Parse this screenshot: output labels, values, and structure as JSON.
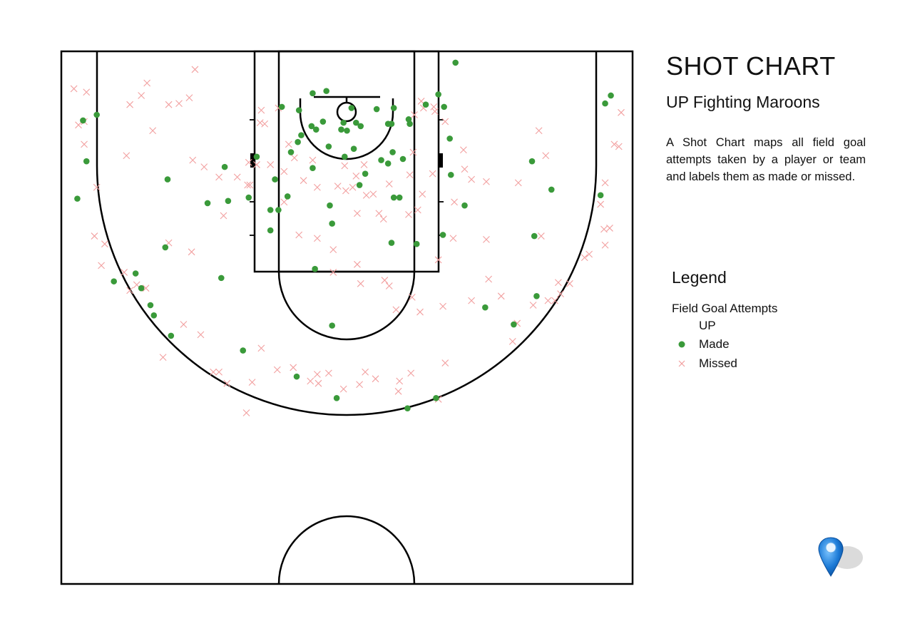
{
  "header": {
    "title": "SHOT CHART",
    "team": "UP Fighting Maroons",
    "description": "A Shot Chart maps all field goal attempts taken by a player or team and labels them as made or missed."
  },
  "legend": {
    "title": "Legend",
    "group_label": "Field Goal Attempts",
    "team_label": "UP",
    "made_label": "Made",
    "missed_label": "Missed",
    "made_color": "#3a9a3a",
    "missed_color": "#f2a0a0"
  },
  "icons": {
    "pin": "map-pin-icon"
  },
  "chart_data": {
    "type": "scatter",
    "title": "SHOT CHART",
    "subtitle": "UP Fighting Maroons",
    "xlim": [
      0,
      50
    ],
    "ylim": [
      0,
      47
    ],
    "series": [
      {
        "name": "Made",
        "color": "#3a9a3a",
        "marker": "circle",
        "points": [
          [
            34.5,
            1.0
          ],
          [
            33.0,
            3.8
          ],
          [
            22.0,
            3.7
          ],
          [
            23.2,
            3.5
          ],
          [
            19.3,
            4.9
          ],
          [
            25.4,
            5.0
          ],
          [
            20.8,
            5.2
          ],
          [
            27.6,
            5.1
          ],
          [
            29.1,
            5.0
          ],
          [
            33.5,
            4.9
          ],
          [
            31.9,
            4.7
          ],
          [
            30.4,
            6.0
          ],
          [
            30.5,
            6.4
          ],
          [
            22.9,
            6.2
          ],
          [
            24.7,
            6.3
          ],
          [
            25.8,
            6.3
          ],
          [
            26.2,
            6.6
          ],
          [
            21.9,
            6.6
          ],
          [
            22.3,
            6.9
          ],
          [
            24.5,
            6.9
          ],
          [
            21.0,
            7.4
          ],
          [
            20.7,
            8.0
          ],
          [
            28.6,
            6.4
          ],
          [
            28.9,
            6.4
          ],
          [
            25.0,
            7.0
          ],
          [
            34.0,
            7.7
          ],
          [
            23.4,
            8.4
          ],
          [
            25.6,
            8.6
          ],
          [
            29.0,
            8.9
          ],
          [
            20.1,
            8.9
          ],
          [
            24.8,
            9.3
          ],
          [
            28.0,
            9.6
          ],
          [
            28.6,
            9.9
          ],
          [
            29.9,
            9.5
          ],
          [
            22.0,
            10.3
          ],
          [
            26.6,
            10.8
          ],
          [
            34.1,
            10.9
          ],
          [
            19.8,
            12.8
          ],
          [
            19.0,
            14.0
          ],
          [
            18.3,
            14.0
          ],
          [
            18.3,
            15.8
          ],
          [
            23.5,
            13.6
          ],
          [
            23.7,
            15.2
          ],
          [
            29.1,
            12.9
          ],
          [
            29.6,
            12.9
          ],
          [
            26.1,
            11.8
          ],
          [
            33.4,
            16.2
          ],
          [
            35.3,
            13.6
          ],
          [
            31.1,
            17.0
          ],
          [
            28.9,
            16.9
          ],
          [
            22.2,
            19.2
          ],
          [
            23.7,
            24.2
          ],
          [
            16.4,
            12.9
          ],
          [
            14.6,
            13.2
          ],
          [
            12.8,
            13.4
          ],
          [
            14.3,
            10.2
          ],
          [
            9.3,
            11.3
          ],
          [
            9.1,
            17.3
          ],
          [
            14.0,
            20.0
          ],
          [
            7.0,
            20.9
          ],
          [
            6.5,
            19.6
          ],
          [
            4.6,
            20.3
          ],
          [
            8.1,
            23.3
          ],
          [
            7.8,
            22.4
          ],
          [
            9.6,
            25.1
          ],
          [
            15.9,
            26.4
          ],
          [
            20.6,
            28.7
          ],
          [
            24.1,
            30.6
          ],
          [
            30.3,
            31.5
          ],
          [
            32.8,
            30.6
          ],
          [
            37.1,
            22.6
          ],
          [
            39.6,
            24.1
          ],
          [
            41.6,
            21.6
          ],
          [
            41.4,
            16.3
          ],
          [
            41.2,
            9.7
          ],
          [
            42.9,
            12.2
          ],
          [
            47.2,
            12.7
          ],
          [
            47.6,
            4.6
          ],
          [
            48.1,
            3.9
          ],
          [
            3.1,
            5.6
          ],
          [
            1.9,
            6.1
          ],
          [
            2.2,
            9.7
          ],
          [
            1.4,
            13.0
          ],
          [
            17.1,
            9.3
          ],
          [
            18.7,
            11.3
          ]
        ]
      },
      {
        "name": "Missed",
        "color": "#f2a0a0",
        "marker": "x",
        "points": [
          [
            11.7,
            1.6
          ],
          [
            7.5,
            2.8
          ],
          [
            1.1,
            3.3
          ],
          [
            2.2,
            3.6
          ],
          [
            7.0,
            3.9
          ],
          [
            6.0,
            4.7
          ],
          [
            9.4,
            4.7
          ],
          [
            10.3,
            4.6
          ],
          [
            11.2,
            4.1
          ],
          [
            1.5,
            6.5
          ],
          [
            2.0,
            6.2
          ],
          [
            8.0,
            7.0
          ],
          [
            2.0,
            8.2
          ],
          [
            5.7,
            9.2
          ],
          [
            11.5,
            9.6
          ],
          [
            12.5,
            10.2
          ],
          [
            13.8,
            11.1
          ],
          [
            15.4,
            11.1
          ],
          [
            14.2,
            14.5
          ],
          [
            3.1,
            12.0
          ],
          [
            2.9,
            16.3
          ],
          [
            3.8,
            17.0
          ],
          [
            3.5,
            18.9
          ],
          [
            5.5,
            19.5
          ],
          [
            6.0,
            21.1
          ],
          [
            6.6,
            20.6
          ],
          [
            7.4,
            20.9
          ],
          [
            9.4,
            16.9
          ],
          [
            11.4,
            17.7
          ],
          [
            10.7,
            24.1
          ],
          [
            12.2,
            25.0
          ],
          [
            8.9,
            27.0
          ],
          [
            13.3,
            28.3
          ],
          [
            13.8,
            28.3
          ],
          [
            14.5,
            29.3
          ],
          [
            16.7,
            29.2
          ],
          [
            16.2,
            31.9
          ],
          [
            17.5,
            26.2
          ],
          [
            18.9,
            28.1
          ],
          [
            20.3,
            27.9
          ],
          [
            21.8,
            29.1
          ],
          [
            22.4,
            28.5
          ],
          [
            22.5,
            29.3
          ],
          [
            23.4,
            28.4
          ],
          [
            24.7,
            29.8
          ],
          [
            26.1,
            29.4
          ],
          [
            26.6,
            28.3
          ],
          [
            27.5,
            28.9
          ],
          [
            29.6,
            29.1
          ],
          [
            29.5,
            30.0
          ],
          [
            30.6,
            28.4
          ],
          [
            33.0,
            30.7
          ],
          [
            33.6,
            27.5
          ],
          [
            33.0,
            18.4
          ],
          [
            34.3,
            16.5
          ],
          [
            34.4,
            13.3
          ],
          [
            30.4,
            14.4
          ],
          [
            30.7,
            21.7
          ],
          [
            31.4,
            23.0
          ],
          [
            28.7,
            20.7
          ],
          [
            29.3,
            22.8
          ],
          [
            33.4,
            22.5
          ],
          [
            25.9,
            18.8
          ],
          [
            25.9,
            14.3
          ],
          [
            27.8,
            14.3
          ],
          [
            28.2,
            14.8
          ],
          [
            26.7,
            12.7
          ],
          [
            27.3,
            12.6
          ],
          [
            21.2,
            11.4
          ],
          [
            22.4,
            12.0
          ],
          [
            24.2,
            11.9
          ],
          [
            24.9,
            12.3
          ],
          [
            25.5,
            12.0
          ],
          [
            19.5,
            13.3
          ],
          [
            20.8,
            16.2
          ],
          [
            22.4,
            16.5
          ],
          [
            23.8,
            17.5
          ],
          [
            23.8,
            19.5
          ],
          [
            26.2,
            20.5
          ],
          [
            28.3,
            20.2
          ],
          [
            30.5,
            10.9
          ],
          [
            32.5,
            10.8
          ],
          [
            31.6,
            12.6
          ],
          [
            31.2,
            14.0
          ],
          [
            30.8,
            8.9
          ],
          [
            28.7,
            11.7
          ],
          [
            25.8,
            11.0
          ],
          [
            24.8,
            10.1
          ],
          [
            26.5,
            10.0
          ],
          [
            22.0,
            9.6
          ],
          [
            20.4,
            9.4
          ],
          [
            19.9,
            8.2
          ],
          [
            19.5,
            10.6
          ],
          [
            18.3,
            10.0
          ],
          [
            17.1,
            10.0
          ],
          [
            16.3,
            11.8
          ],
          [
            16.5,
            11.8
          ],
          [
            16.4,
            9.8
          ],
          [
            17.4,
            6.3
          ],
          [
            17.8,
            6.4
          ],
          [
            17.5,
            5.2
          ],
          [
            19.0,
            5.0
          ],
          [
            30.9,
            5.6
          ],
          [
            31.5,
            4.4
          ],
          [
            31.7,
            5.0
          ],
          [
            32.6,
            4.9
          ],
          [
            32.7,
            5.3
          ],
          [
            33.6,
            6.2
          ],
          [
            35.2,
            8.7
          ],
          [
            35.9,
            11.3
          ],
          [
            37.2,
            11.5
          ],
          [
            35.3,
            10.4
          ],
          [
            37.2,
            16.6
          ],
          [
            35.9,
            22.0
          ],
          [
            37.4,
            20.1
          ],
          [
            38.5,
            21.6
          ],
          [
            39.9,
            24.0
          ],
          [
            42.0,
            16.3
          ],
          [
            41.8,
            7.0
          ],
          [
            42.4,
            9.2
          ],
          [
            40.0,
            11.6
          ],
          [
            47.6,
            11.6
          ],
          [
            47.2,
            13.5
          ],
          [
            47.5,
            15.7
          ],
          [
            48.0,
            15.6
          ],
          [
            47.6,
            17.1
          ],
          [
            48.4,
            8.2
          ],
          [
            48.8,
            8.4
          ],
          [
            49.0,
            5.4
          ],
          [
            46.2,
            17.9
          ],
          [
            45.8,
            18.2
          ],
          [
            43.5,
            20.4
          ],
          [
            41.3,
            22.4
          ],
          [
            39.5,
            25.6
          ],
          [
            42.6,
            22.0
          ],
          [
            43.2,
            22.0
          ],
          [
            43.7,
            21.4
          ],
          [
            44.5,
            20.5
          ]
        ]
      }
    ]
  }
}
